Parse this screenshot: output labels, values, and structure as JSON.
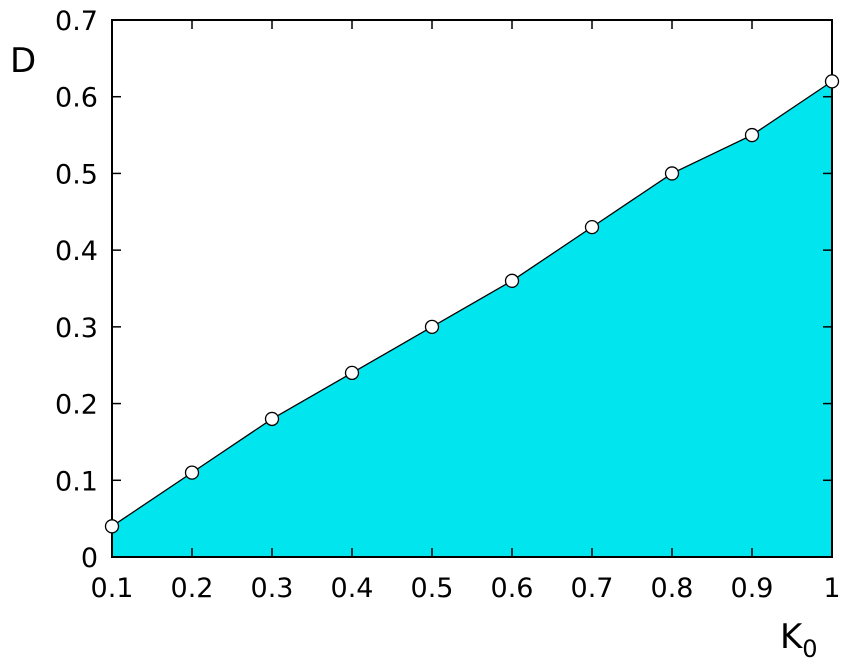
{
  "chart_data": {
    "type": "area",
    "xlabel": "K",
    "xlabel_subscript": "0",
    "ylabel": "D",
    "xlim": [
      0.1,
      1.0
    ],
    "ylim": [
      0,
      0.7
    ],
    "xticks": [
      0.1,
      0.2,
      0.3,
      0.4,
      0.5,
      0.6,
      0.7,
      0.8,
      0.9,
      1.0
    ],
    "xtick_labels": [
      "0.1",
      "0.2",
      "0.3",
      "0.4",
      "0.5",
      "0.6",
      "0.7",
      "0.8",
      "0.9",
      "1"
    ],
    "yticks": [
      0,
      0.1,
      0.2,
      0.3,
      0.4,
      0.5,
      0.6,
      0.7
    ],
    "ytick_labels": [
      "0",
      "0.1",
      "0.2",
      "0.3",
      "0.4",
      "0.5",
      "0.6",
      "0.7"
    ],
    "grid": false,
    "fill_color": "#00e5ee",
    "line_color": "#000000",
    "marker": "open-circle",
    "series": [
      {
        "x": [
          0.1,
          0.2,
          0.3,
          0.4,
          0.5,
          0.6,
          0.7,
          0.8,
          0.9,
          1.0
        ],
        "y": [
          0.04,
          0.11,
          0.18,
          0.24,
          0.3,
          0.36,
          0.43,
          0.5,
          0.55,
          0.62
        ]
      }
    ]
  }
}
